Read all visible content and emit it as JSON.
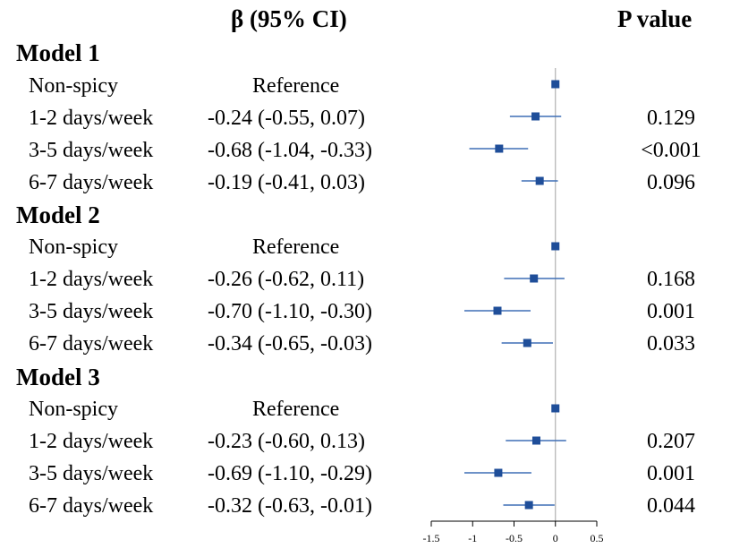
{
  "header": {
    "beta_label": "β (95% CI)",
    "p_label": "P value"
  },
  "models": [
    {
      "name": "Model 1",
      "rows": [
        {
          "category": "Non-spicy",
          "estimate_text": "Reference",
          "p_value": ""
        },
        {
          "category": "1-2 days/week",
          "estimate_text": "-0.24 (-0.55, 0.07)",
          "p_value": "0.129"
        },
        {
          "category": "3-5 days/week",
          "estimate_text": "-0.68 (-1.04, -0.33)",
          "p_value": "<0.001"
        },
        {
          "category": "6-7 days/week",
          "estimate_text": "-0.19 (-0.41, 0.03)",
          "p_value": "0.096"
        }
      ]
    },
    {
      "name": "Model 2",
      "rows": [
        {
          "category": "Non-spicy",
          "estimate_text": "Reference",
          "p_value": ""
        },
        {
          "category": "1-2 days/week",
          "estimate_text": "-0.26 (-0.62, 0.11)",
          "p_value": "0.168"
        },
        {
          "category": "3-5 days/week",
          "estimate_text": "-0.70 (-1.10, -0.30)",
          "p_value": "0.001"
        },
        {
          "category": "6-7 days/week",
          "estimate_text": "-0.34 (-0.65, -0.03)",
          "p_value": "0.033"
        }
      ]
    },
    {
      "name": "Model 3",
      "rows": [
        {
          "category": "Non-spicy",
          "estimate_text": "Reference",
          "p_value": ""
        },
        {
          "category": "1-2 days/week",
          "estimate_text": "-0.23 (-0.60, 0.13)",
          "p_value": "0.207"
        },
        {
          "category": "3-5 days/week",
          "estimate_text": "-0.69 (-1.10, -0.29)",
          "p_value": "0.001"
        },
        {
          "category": "6-7 days/week",
          "estimate_text": "-0.32 (-0.63, -0.01)",
          "p_value": "0.044"
        }
      ]
    }
  ],
  "chart_data": {
    "type": "forest",
    "title": "",
    "xlabel": "",
    "xlim": [
      -1.5,
      0.5
    ],
    "x_ticks": [
      -1.5,
      -1,
      -0.5,
      0,
      0.5
    ],
    "x_tick_labels": [
      "-1.5",
      "-1",
      "-0.5",
      "0",
      "0.5"
    ],
    "reference_line": 0,
    "marker_color": "#1f4e99",
    "ci_color": "#3f6fb5",
    "ref_line_color": "#b0b0b0",
    "points": [
      {
        "model": "Model 1",
        "category": "Non-spicy",
        "estimate": 0,
        "lower": 0,
        "upper": 0
      },
      {
        "model": "Model 1",
        "category": "1-2 days/week",
        "estimate": -0.24,
        "lower": -0.55,
        "upper": 0.07
      },
      {
        "model": "Model 1",
        "category": "3-5 days/week",
        "estimate": -0.68,
        "lower": -1.04,
        "upper": -0.33
      },
      {
        "model": "Model 1",
        "category": "6-7 days/week",
        "estimate": -0.19,
        "lower": -0.41,
        "upper": 0.03
      },
      {
        "model": "Model 2",
        "category": "Non-spicy",
        "estimate": 0,
        "lower": 0,
        "upper": 0
      },
      {
        "model": "Model 2",
        "category": "1-2 days/week",
        "estimate": -0.26,
        "lower": -0.62,
        "upper": 0.11
      },
      {
        "model": "Model 2",
        "category": "3-5 days/week",
        "estimate": -0.7,
        "lower": -1.1,
        "upper": -0.3
      },
      {
        "model": "Model 2",
        "category": "6-7 days/week",
        "estimate": -0.34,
        "lower": -0.65,
        "upper": -0.03
      },
      {
        "model": "Model 3",
        "category": "Non-spicy",
        "estimate": 0,
        "lower": 0,
        "upper": 0
      },
      {
        "model": "Model 3",
        "category": "1-2 days/week",
        "estimate": -0.23,
        "lower": -0.6,
        "upper": 0.13
      },
      {
        "model": "Model 3",
        "category": "3-5 days/week",
        "estimate": -0.69,
        "lower": -1.1,
        "upper": -0.29
      },
      {
        "model": "Model 3",
        "category": "6-7 days/week",
        "estimate": -0.32,
        "lower": -0.63,
        "upper": -0.01
      }
    ]
  }
}
